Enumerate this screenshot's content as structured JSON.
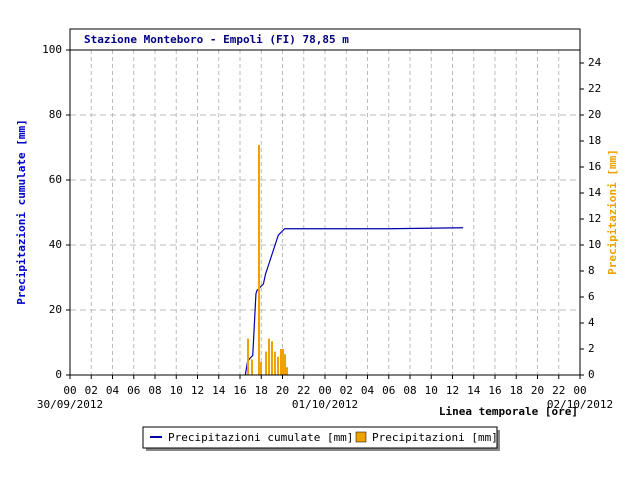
{
  "chart_data": {
    "type": "combo",
    "title": "Stazione Monteboro - Empoli (FI) 78,85 m",
    "ylabel": "Precipitazioni cumulate [mm]",
    "y2label": "Precipitazioni [mm]",
    "xlabel": "Linea temporale [ore]",
    "xlim": [
      0,
      48
    ],
    "xticks": [
      {
        "value": 0,
        "label": "00"
      },
      {
        "value": 2,
        "label": "02"
      },
      {
        "value": 4,
        "label": "04"
      },
      {
        "value": 6,
        "label": "06"
      },
      {
        "value": 8,
        "label": "08"
      },
      {
        "value": 10,
        "label": "10"
      },
      {
        "value": 12,
        "label": "12"
      },
      {
        "value": 14,
        "label": "14"
      },
      {
        "value": 16,
        "label": "16"
      },
      {
        "value": 18,
        "label": "18"
      },
      {
        "value": 20,
        "label": "20"
      },
      {
        "value": 22,
        "label": "22"
      },
      {
        "value": 24,
        "label": "00"
      },
      {
        "value": 26,
        "label": "02"
      },
      {
        "value": 28,
        "label": "04"
      },
      {
        "value": 30,
        "label": "06"
      },
      {
        "value": 32,
        "label": "08"
      },
      {
        "value": 34,
        "label": "10"
      },
      {
        "value": 36,
        "label": "12"
      },
      {
        "value": 38,
        "label": "14"
      },
      {
        "value": 40,
        "label": "16"
      },
      {
        "value": 42,
        "label": "18"
      },
      {
        "value": 44,
        "label": "20"
      },
      {
        "value": 46,
        "label": "22"
      },
      {
        "value": 48,
        "label": "00"
      }
    ],
    "date_labels": [
      {
        "value": 0,
        "label": "30/09/2012"
      },
      {
        "value": 24,
        "label": "01/10/2012"
      },
      {
        "value": 48,
        "label": "02/10/2012"
      }
    ],
    "ylim": [
      0,
      100
    ],
    "yticks": [
      0,
      20,
      40,
      60,
      80,
      100
    ],
    "y2lim": [
      0,
      25
    ],
    "y2ticks": [
      0,
      2,
      4,
      6,
      8,
      10,
      12,
      14,
      16,
      18,
      20,
      22,
      24
    ],
    "grid": true,
    "series": [
      {
        "name": "Precipitazioni cumulate [mm]",
        "type": "line",
        "color": "#0000aa",
        "x": [
          16.5,
          16.6,
          16.7,
          16.9,
          17.2,
          17.5,
          17.6,
          17.9,
          18.2,
          18.4,
          18.6,
          18.8,
          19.0,
          19.2,
          19.4,
          19.6,
          19.9,
          20.2,
          20.6,
          30,
          37
        ],
        "values": [
          0,
          2,
          4,
          5,
          6,
          25,
          26,
          27,
          28,
          31,
          33,
          35,
          37,
          39,
          41,
          43,
          44,
          45,
          45,
          45,
          45.3
        ]
      },
      {
        "name": "Precipitazioni [mm]",
        "type": "bar",
        "axis": "y2",
        "color": "#f0a000",
        "x": [
          16.75,
          17.13,
          17.79,
          17.98,
          18.45,
          18.73,
          19.01,
          19.29,
          19.58,
          19.86,
          20.05,
          20.24,
          20.42
        ],
        "values": [
          2.8,
          1.2,
          17.7,
          1.0,
          1.8,
          2.8,
          2.6,
          1.8,
          1.4,
          2.0,
          2.0,
          1.6,
          0.6
        ]
      }
    ]
  }
}
